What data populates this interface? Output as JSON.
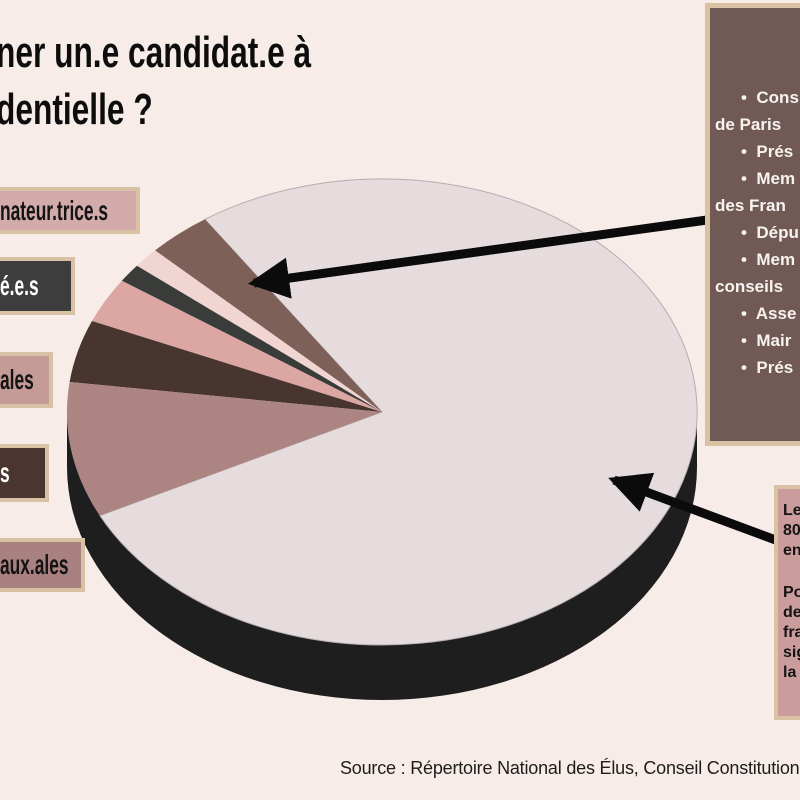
{
  "title": {
    "line1": "ner un.e candidat.e à",
    "line2": "dentielle ?"
  },
  "left_labels": [
    {
      "text": "nateur.trice.s"
    },
    {
      "text": "é.e.s"
    },
    {
      "text": "ales"
    },
    {
      "text": "s"
    },
    {
      "text": "aux.ales"
    }
  ],
  "right_panel": {
    "lines": [
      "•  Cons",
      "de Paris",
      "•  Prés",
      "•  Mem",
      "des Fran",
      "•  Dépu",
      "•  Mem",
      "conseils",
      "•  Asse",
      "•  Mair",
      "•  Prés"
    ]
  },
  "note_panel": {
    "paragraphs": [
      [
        "Le",
        "80",
        "en"
      ],
      [
        "Po",
        "de",
        "fra",
        "sig",
        "la"
      ]
    ]
  },
  "source": "Source : Répertoire National des Élus, Conseil Constitution",
  "palette": {
    "background": "#f7ece8",
    "title_fg": "#0d0d0d",
    "tan_border": "#d9c2a4",
    "label1_bg": "#d4abab",
    "label2_bg": "#3d3d3d",
    "label3_bg": "#c59b97",
    "label4_bg": "#4a3531",
    "label5_bg": "#aa8181",
    "label_dark_fg": "#141414",
    "label_light_fg": "#ffffff",
    "rpanel_bg": "#715955",
    "rpanel_fg": "#f7f3f0",
    "npanel_bg": "#cb9c9c",
    "npanel_fg": "#141414",
    "source_fg": "#1d1d1d",
    "arrow": "#0b0b0b",
    "pie_base": "#1d1e1d"
  },
  "chart_data": {
    "type": "pie",
    "style": "3d",
    "title": "",
    "legend_position": "left",
    "labels_cropped": true,
    "segments": [
      {
        "name": "majority-light",
        "color": "#e6dcdd",
        "stroke": "#b7adae",
        "percent": 77.2,
        "start_deg": 235.8,
        "end_deg": 513.6
      },
      {
        "name": "brown",
        "color": "#7d6058",
        "percent": 3.3,
        "start_deg": 223.9,
        "end_deg": 235.8
      },
      {
        "name": "light-pink",
        "color": "#f1d5d2",
        "percent": 1.4,
        "start_deg": 218.9,
        "end_deg": 223.9
      },
      {
        "name": "dark-gray",
        "color": "#3a3c3a",
        "percent": 1.3,
        "start_deg": 214.3,
        "end_deg": 218.9
      },
      {
        "name": "salmon",
        "color": "#dca7a2",
        "percent": 3.1,
        "start_deg": 203.0,
        "end_deg": 214.3
      },
      {
        "name": "dark-brown",
        "color": "#483530",
        "percent": 4.3,
        "start_deg": 187.4,
        "end_deg": 203.0
      },
      {
        "name": "mauve",
        "color": "#ac8583",
        "percent": 9.4,
        "start_deg": 153.6,
        "end_deg": 187.4
      }
    ]
  }
}
